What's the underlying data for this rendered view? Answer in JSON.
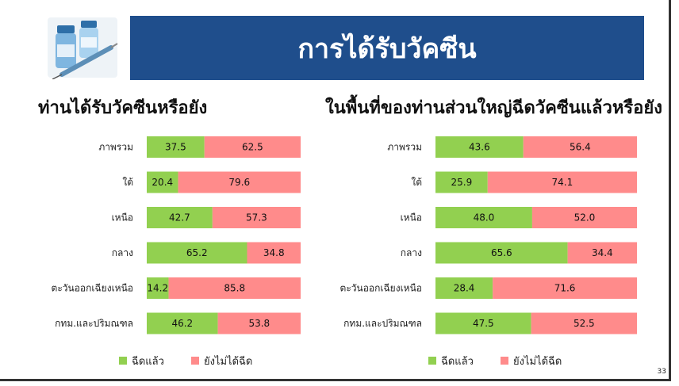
{
  "slide": {
    "title": "การได้รับวัคซีน",
    "page_number": "33",
    "icon": "vaccine-vial-syringe-icon"
  },
  "colors": {
    "banner": "#1f4e8c",
    "vaccinated": "#92d050",
    "not_vaccinated": "#ff8b8b"
  },
  "chart_data": [
    {
      "type": "bar",
      "orientation": "horizontal",
      "stacked": true,
      "title": "ท่านได้รับวัคซีนหรือยัง",
      "categories": [
        "ภาพรวม",
        "ใต้",
        "เหนือ",
        "กลาง",
        "ตะวันออกเฉียงเหนือ",
        "กทม.และปริมณฑล"
      ],
      "series": [
        {
          "name": "ฉีดแล้ว",
          "values": [
            37.5,
            20.4,
            42.7,
            65.2,
            14.2,
            46.2
          ]
        },
        {
          "name": "ยังไม่ได้ฉีด",
          "values": [
            62.5,
            79.6,
            57.3,
            34.8,
            85.8,
            53.8
          ]
        }
      ],
      "xlim": [
        0,
        100
      ],
      "legend": "bottom"
    },
    {
      "type": "bar",
      "orientation": "horizontal",
      "stacked": true,
      "title": "ในพื้นที่ของท่านส่วนใหญ่ฉีดวัคซีนแล้วหรือยัง",
      "categories": [
        "ภาพรวม",
        "ใต้",
        "เหนือ",
        "กลาง",
        "ตะวันออกเฉียงเหนือ",
        "กทม.และปริมณฑล"
      ],
      "series": [
        {
          "name": "ฉีดแล้ว",
          "values": [
            43.6,
            25.9,
            48.0,
            65.6,
            28.4,
            47.5
          ]
        },
        {
          "name": "ยังไม่ได้ฉีด",
          "values": [
            56.4,
            74.1,
            52.0,
            34.4,
            71.6,
            52.5
          ]
        }
      ],
      "xlim": [
        0,
        100
      ],
      "legend": "bottom"
    }
  ]
}
